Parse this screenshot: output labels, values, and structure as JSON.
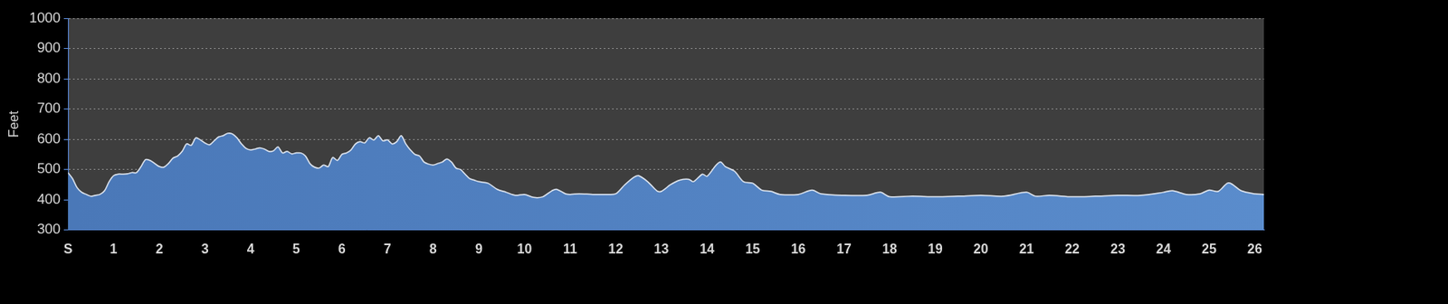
{
  "chart_data": {
    "type": "area",
    "y_label": "Feet",
    "x": [
      0,
      0.1,
      0.2,
      0.3,
      0.4,
      0.5,
      0.6,
      0.7,
      0.8,
      0.9,
      1.0,
      1.1,
      1.2,
      1.3,
      1.4,
      1.5,
      1.6,
      1.7,
      1.8,
      1.9,
      2.0,
      2.1,
      2.2,
      2.3,
      2.4,
      2.5,
      2.6,
      2.7,
      2.8,
      2.9,
      3.0,
      3.1,
      3.2,
      3.3,
      3.4,
      3.5,
      3.6,
      3.7,
      3.8,
      3.9,
      4.0,
      4.1,
      4.2,
      4.3,
      4.4,
      4.5,
      4.6,
      4.7,
      4.8,
      4.9,
      5.0,
      5.1,
      5.2,
      5.3,
      5.4,
      5.5,
      5.6,
      5.7,
      5.8,
      5.9,
      6.0,
      6.1,
      6.2,
      6.3,
      6.4,
      6.5,
      6.6,
      6.7,
      6.8,
      6.9,
      7.0,
      7.1,
      7.2,
      7.3,
      7.4,
      7.5,
      7.6,
      7.7,
      7.8,
      7.9,
      8.0,
      8.1,
      8.2,
      8.3,
      8.4,
      8.5,
      8.6,
      8.7,
      8.8,
      8.9,
      9.0,
      9.2,
      9.4,
      9.6,
      9.8,
      10.0,
      10.2,
      10.4,
      10.6,
      10.7,
      10.9,
      11.0,
      11.2,
      11.5,
      11.8,
      12.0,
      12.2,
      12.4,
      12.5,
      12.7,
      12.9,
      13.0,
      13.2,
      13.4,
      13.6,
      13.7,
      13.9,
      14.0,
      14.2,
      14.3,
      14.4,
      14.6,
      14.8,
      15.0,
      15.2,
      15.4,
      15.6,
      16.0,
      16.3,
      16.5,
      17.0,
      17.5,
      17.8,
      18.0,
      18.5,
      19.0,
      19.5,
      20.0,
      20.5,
      21.0,
      21.2,
      21.5,
      22.0,
      22.5,
      23.0,
      23.5,
      24.0,
      24.2,
      24.5,
      24.8,
      25.0,
      25.2,
      25.4,
      25.5,
      25.7,
      26.0,
      26.2
    ],
    "values": [
      490,
      470,
      440,
      425,
      418,
      412,
      415,
      418,
      430,
      460,
      480,
      485,
      485,
      486,
      490,
      490,
      510,
      533,
      530,
      520,
      510,
      508,
      520,
      538,
      545,
      560,
      585,
      580,
      605,
      598,
      588,
      582,
      595,
      608,
      612,
      620,
      618,
      605,
      585,
      570,
      565,
      568,
      572,
      568,
      560,
      562,
      575,
      555,
      560,
      552,
      555,
      555,
      545,
      520,
      508,
      505,
      515,
      510,
      540,
      530,
      550,
      555,
      565,
      585,
      592,
      588,
      605,
      598,
      612,
      595,
      598,
      585,
      592,
      612,
      585,
      565,
      550,
      545,
      525,
      518,
      515,
      520,
      525,
      535,
      525,
      505,
      500,
      485,
      470,
      465,
      460,
      455,
      435,
      425,
      415,
      418,
      408,
      410,
      430,
      435,
      420,
      418,
      420,
      418,
      418,
      420,
      450,
      475,
      480,
      460,
      430,
      428,
      450,
      465,
      468,
      460,
      485,
      478,
      515,
      525,
      510,
      495,
      460,
      455,
      432,
      428,
      418,
      418,
      432,
      420,
      415,
      415,
      425,
      410,
      412,
      410,
      412,
      415,
      412,
      425,
      412,
      415,
      410,
      412,
      415,
      415,
      425,
      430,
      418,
      420,
      432,
      428,
      455,
      452,
      430,
      420,
      418
    ],
    "color": "#4a78b8",
    "xlim": [
      0,
      26.2
    ],
    "xticks": [
      {
        "value": 0,
        "label": "S"
      },
      1,
      2,
      3,
      4,
      5,
      6,
      7,
      8,
      9,
      10,
      11,
      12,
      13,
      14,
      15,
      16,
      17,
      18,
      19,
      20,
      21,
      22,
      23,
      24,
      25,
      26
    ],
    "ylim": [
      300,
      1000
    ],
    "yticks": [
      300,
      400,
      500,
      600,
      700,
      800,
      900,
      1000
    ],
    "grid": true
  }
}
